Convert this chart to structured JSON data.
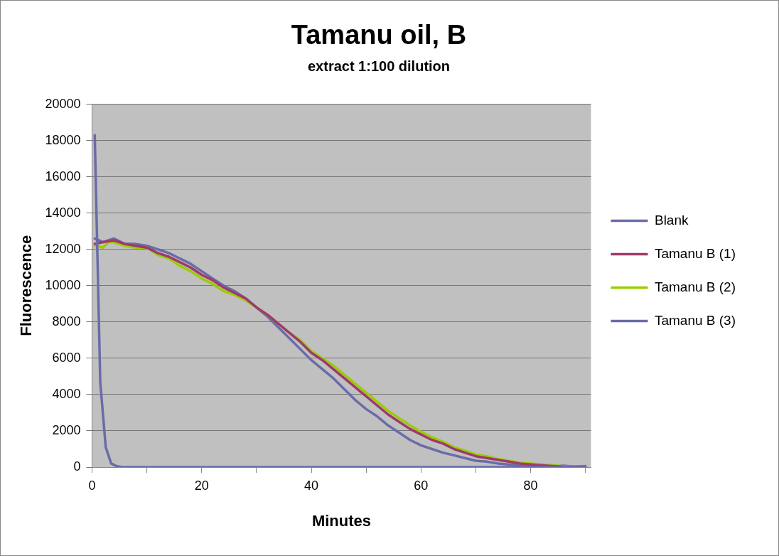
{
  "chart_data": {
    "type": "line",
    "title": "Tamanu oil, B",
    "subtitle": "extract 1:100 dilution",
    "xlabel": "Minutes",
    "ylabel": "Fluorescence",
    "xlim": [
      0,
      91
    ],
    "xticks": [
      0,
      {
        "value": 10,
        "label": null
      },
      20,
      {
        "value": 30,
        "label": null
      },
      40,
      {
        "value": 50,
        "label": null
      },
      60,
      {
        "value": 70,
        "label": null
      },
      80,
      {
        "value": 90,
        "label": null
      }
    ],
    "ylim": [
      0,
      20000
    ],
    "yticks": [
      0,
      2000,
      4000,
      6000,
      8000,
      10000,
      12000,
      14000,
      16000,
      18000,
      20000
    ],
    "grid": "y",
    "legend": "right",
    "marker": "none",
    "line_style": "solid",
    "series": [
      {
        "name": "Blank",
        "color": "#6b6ba8",
        "x": [
          0.5,
          1.5,
          2.5,
          3.5,
          4.5,
          5.5,
          10,
          20,
          30,
          40,
          50,
          60,
          70,
          80,
          90
        ],
        "values": [
          18300,
          4700,
          1100,
          200,
          50,
          0,
          0,
          0,
          0,
          0,
          0,
          0,
          0,
          0,
          0
        ]
      },
      {
        "name": "Tamanu B (1)",
        "color": "#9e3a6b",
        "x": [
          0.5,
          2,
          4,
          6,
          8,
          10,
          12,
          14,
          16,
          18,
          20,
          22,
          24,
          26,
          28,
          30,
          32,
          34,
          36,
          38,
          40,
          42,
          44,
          46,
          48,
          50,
          52,
          54,
          56,
          58,
          60,
          62,
          64,
          66,
          68,
          70,
          72,
          74,
          76,
          78,
          80,
          82,
          84,
          86,
          88,
          90
        ],
        "values": [
          12300,
          12400,
          12500,
          12300,
          12200,
          12100,
          11800,
          11600,
          11300,
          11000,
          10600,
          10300,
          9900,
          9600,
          9300,
          8800,
          8400,
          7900,
          7400,
          6900,
          6300,
          5900,
          5400,
          4900,
          4400,
          3900,
          3400,
          2900,
          2500,
          2100,
          1800,
          1500,
          1300,
          1000,
          800,
          600,
          500,
          400,
          300,
          200,
          150,
          100,
          60,
          30,
          20,
          10
        ]
      },
      {
        "name": "Tamanu B (2)",
        "color": "#9acd00",
        "x": [
          0.5,
          2,
          3,
          4,
          6,
          8,
          10,
          12,
          14,
          16,
          18,
          20,
          22,
          24,
          26,
          28,
          30,
          32,
          34,
          36,
          38,
          40,
          42,
          44,
          46,
          48,
          50,
          52,
          54,
          56,
          58,
          60,
          62,
          64,
          66,
          68,
          70,
          72,
          74,
          76,
          78,
          80,
          82,
          84,
          86,
          88,
          90
        ],
        "values": [
          12200,
          12100,
          12400,
          12400,
          12200,
          12100,
          12100,
          11700,
          11500,
          11100,
          10800,
          10400,
          10100,
          9700,
          9500,
          9200,
          8800,
          8400,
          7900,
          7400,
          7000,
          6400,
          6000,
          5600,
          5100,
          4600,
          4100,
          3600,
          3100,
          2700,
          2300,
          1950,
          1650,
          1400,
          1100,
          900,
          700,
          600,
          450,
          350,
          250,
          200,
          150,
          100,
          50,
          30,
          20
        ]
      },
      {
        "name": "Tamanu B (3)",
        "color": "#6b6ba8",
        "x": [
          0.5,
          2,
          3,
          4,
          6,
          8,
          10,
          12,
          14,
          16,
          18,
          20,
          22,
          24,
          26,
          28,
          30,
          32,
          34,
          36,
          38,
          40,
          42,
          44,
          46,
          48,
          50,
          52,
          54,
          56,
          58,
          60,
          62,
          64,
          66,
          68,
          70,
          72,
          74,
          76,
          78,
          80,
          82,
          84,
          86,
          88,
          90
        ],
        "values": [
          12600,
          12400,
          12500,
          12600,
          12300,
          12300,
          12200,
          12000,
          11800,
          11500,
          11200,
          10800,
          10400,
          10000,
          9700,
          9300,
          8800,
          8300,
          7700,
          7100,
          6500,
          5900,
          5400,
          4900,
          4300,
          3700,
          3200,
          2800,
          2300,
          1900,
          1500,
          1200,
          1000,
          800,
          650,
          500,
          350,
          300,
          200,
          150,
          100,
          80,
          50,
          30,
          80,
          30,
          60
        ]
      }
    ]
  }
}
